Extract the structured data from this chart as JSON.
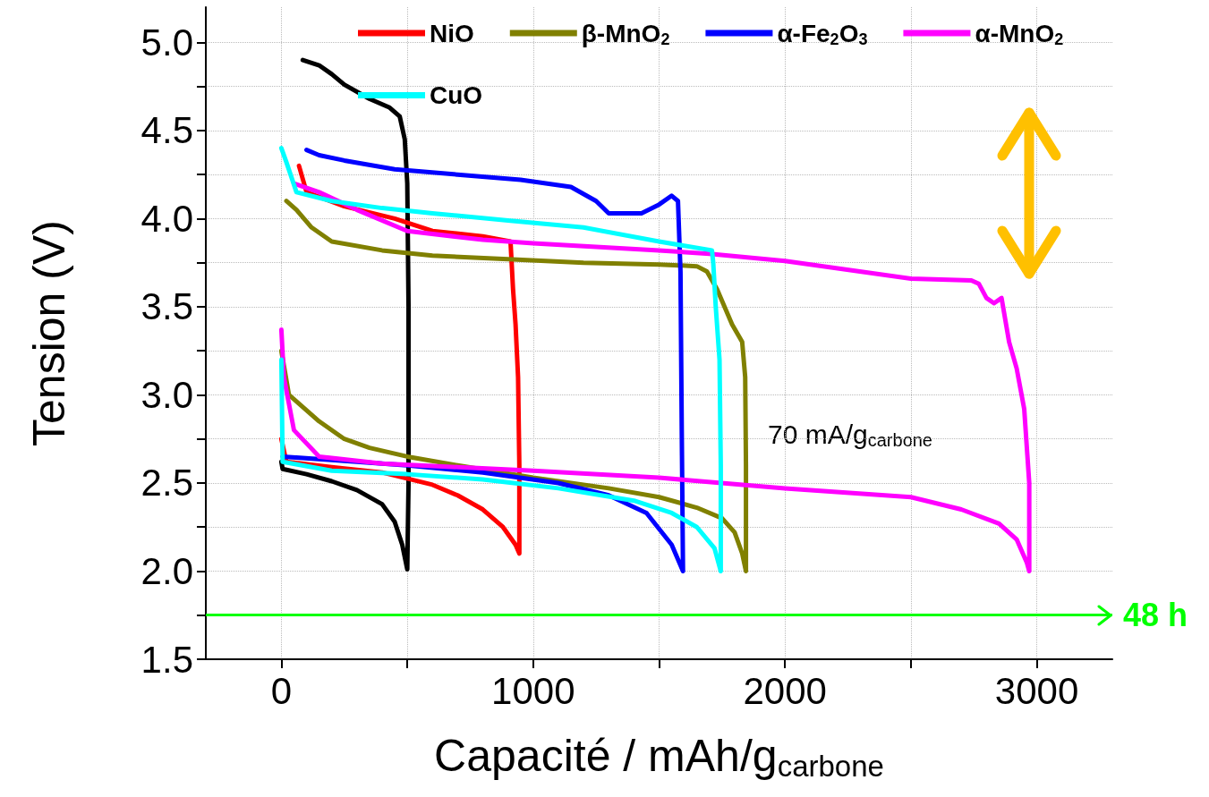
{
  "chart_data": {
    "type": "line",
    "xlabel": "Capacité / mAh/g$_{carbone}$",
    "ylabel": "Tension (V)",
    "xlim": [
      -300,
      3300
    ],
    "xticks": [
      0,
      {
        "value": 500,
        "label": null
      },
      1000,
      {
        "value": 1500,
        "label": null
      },
      2000,
      {
        "value": 2500,
        "label": null
      },
      3000
    ],
    "ylim": [
      1.5,
      5.2
    ],
    "yticks": [
      {
        "value": 1.5,
        "label": "1.5"
      },
      {
        "value": 1.75,
        "label": null
      },
      {
        "value": 2,
        "label": "2.0"
      },
      {
        "value": 2.25,
        "label": null
      },
      {
        "value": 2.5,
        "label": "2.5"
      },
      {
        "value": 2.75,
        "label": null
      },
      {
        "value": 3,
        "label": "3.0"
      },
      {
        "value": 3.25,
        "label": null
      },
      {
        "value": 3.5,
        "label": "3.5"
      },
      {
        "value": 3.75,
        "label": null
      },
      {
        "value": 4,
        "label": "4.0"
      },
      {
        "value": 4.25,
        "label": null
      },
      {
        "value": 4.5,
        "label": "4.5"
      },
      {
        "value": 4.75,
        "label": null
      },
      {
        "value": 5,
        "label": "5.0"
      }
    ],
    "grid": true,
    "legend": "top",
    "marker": "none",
    "line_style": "solid",
    "series": [
      {
        "color": "#000000",
        "x": [
          0,
          5,
          100,
          200,
          300,
          400,
          450,
          480,
          500,
          505,
          505,
          500,
          490,
          470,
          430,
          350,
          250,
          200,
          150,
          85
        ],
        "values": [
          2.62,
          2.58,
          2.55,
          2.51,
          2.46,
          2.38,
          2.28,
          2.15,
          2.01,
          2.5,
          3.5,
          4.2,
          4.45,
          4.58,
          4.63,
          4.68,
          4.76,
          4.82,
          4.87,
          4.9
        ]
      },
      {
        "name": "NiO",
        "color": "#ff0000",
        "x": [
          0,
          20,
          200,
          400,
          600,
          700,
          800,
          880,
          930,
          945,
          945,
          940,
          930,
          920,
          910,
          800,
          600,
          450,
          250,
          100,
          70
        ],
        "values": [
          2.75,
          2.62,
          2.59,
          2.56,
          2.49,
          2.43,
          2.35,
          2.25,
          2.15,
          2.1,
          2.6,
          3.1,
          3.4,
          3.6,
          3.87,
          3.9,
          3.93,
          4.0,
          4.07,
          4.15,
          4.3
        ]
      },
      {
        "name": "β-MnO$_{2}$",
        "color": "#808000",
        "x": [
          0,
          30,
          150,
          250,
          350,
          500,
          700,
          1000,
          1300,
          1500,
          1650,
          1750,
          1800,
          1830,
          1845,
          1845,
          1842,
          1830,
          1790,
          1760,
          1730,
          1690,
          1650,
          1500,
          1200,
          900,
          600,
          400,
          200,
          120,
          60,
          20
        ],
        "values": [
          3.25,
          3.0,
          2.85,
          2.75,
          2.7,
          2.65,
          2.6,
          2.53,
          2.47,
          2.42,
          2.36,
          2.3,
          2.22,
          2.1,
          2.0,
          2.6,
          3.1,
          3.3,
          3.4,
          3.5,
          3.6,
          3.7,
          3.73,
          3.74,
          3.75,
          3.77,
          3.79,
          3.82,
          3.87,
          3.95,
          4.05,
          4.1
        ]
      },
      {
        "name": "α-Fe$_{2}$O$_{3}$",
        "color": "#0000ff",
        "x": [
          5,
          200,
          500,
          800,
          1100,
          1300,
          1450,
          1550,
          1595,
          1590,
          1585,
          1575,
          1550,
          1500,
          1430,
          1300,
          1250,
          1150,
          950,
          700,
          450,
          250,
          150,
          100
        ],
        "values": [
          2.65,
          2.63,
          2.6,
          2.56,
          2.5,
          2.43,
          2.33,
          2.15,
          2.0,
          2.8,
          3.7,
          4.1,
          4.13,
          4.08,
          4.03,
          4.03,
          4.1,
          4.18,
          4.22,
          4.25,
          4.28,
          4.33,
          4.36,
          4.39
        ]
      },
      {
        "name": "α-MnO$_{2}$",
        "color": "#ff00ff",
        "x": [
          0,
          10,
          50,
          150,
          400,
          1000,
          1500,
          2000,
          2500,
          2700,
          2850,
          2920,
          2960,
          2970,
          2970,
          2950,
          2920,
          2890,
          2860,
          2830,
          2800,
          2770,
          2740,
          2500,
          2000,
          1700,
          1500,
          1000,
          800,
          500,
          300,
          150,
          50
        ],
        "values": [
          3.37,
          3.1,
          2.8,
          2.65,
          2.61,
          2.57,
          2.53,
          2.47,
          2.42,
          2.35,
          2.27,
          2.18,
          2.05,
          2.0,
          2.5,
          2.92,
          3.15,
          3.3,
          3.55,
          3.52,
          3.55,
          3.63,
          3.65,
          3.66,
          3.76,
          3.8,
          3.82,
          3.86,
          3.88,
          3.93,
          4.05,
          4.15,
          4.2
        ]
      },
      {
        "name": "CuO",
        "color": "#00ffff",
        "x": [
          0,
          5,
          200,
          500,
          800,
          1100,
          1400,
          1550,
          1650,
          1720,
          1745,
          1745,
          1740,
          1725,
          1715,
          1710,
          1500,
          1200,
          900,
          600,
          400,
          200,
          60,
          20,
          0
        ],
        "values": [
          3.2,
          2.62,
          2.57,
          2.55,
          2.52,
          2.47,
          2.4,
          2.33,
          2.25,
          2.13,
          2.0,
          2.6,
          3.2,
          3.5,
          3.75,
          3.82,
          3.87,
          3.95,
          3.99,
          4.03,
          4.06,
          4.1,
          4.15,
          4.32,
          4.4
        ]
      }
    ],
    "ref_lines": [
      {
        "axis": "y",
        "value": 1.75,
        "label": "48 h",
        "color": "#00ff00"
      }
    ],
    "annotations": [
      "70 mA/g$_{carbone}$"
    ]
  }
}
